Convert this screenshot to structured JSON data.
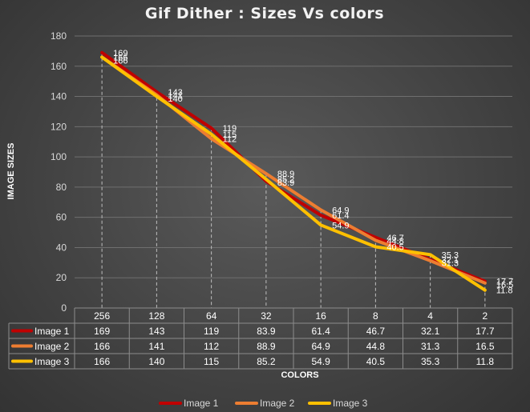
{
  "chart_data": {
    "type": "line",
    "title": "Gif Dither  : Sizes Vs colors",
    "xlabel": "COLORS",
    "ylabel": "IMAGE SIZES",
    "categories": [
      "256",
      "128",
      "64",
      "32",
      "16",
      "8",
      "4",
      "2"
    ],
    "ylim": [
      0,
      180
    ],
    "yticks": [
      0,
      20,
      40,
      60,
      80,
      100,
      120,
      140,
      160,
      180
    ],
    "grid": true,
    "legend": "bottom",
    "data_table": true,
    "series": [
      {
        "name": "Image 1",
        "color": "#c00000",
        "values": [
          169,
          143,
          119,
          83.9,
          61.4,
          46.7,
          32.1,
          17.7
        ]
      },
      {
        "name": "Image 2",
        "color": "#ed7d31",
        "values": [
          166,
          141,
          112,
          88.9,
          64.9,
          44.8,
          31.3,
          16.5
        ]
      },
      {
        "name": "Image 3",
        "color": "#ffc000",
        "values": [
          166,
          140,
          115,
          85.2,
          54.9,
          40.5,
          35.3,
          11.8
        ]
      }
    ]
  }
}
